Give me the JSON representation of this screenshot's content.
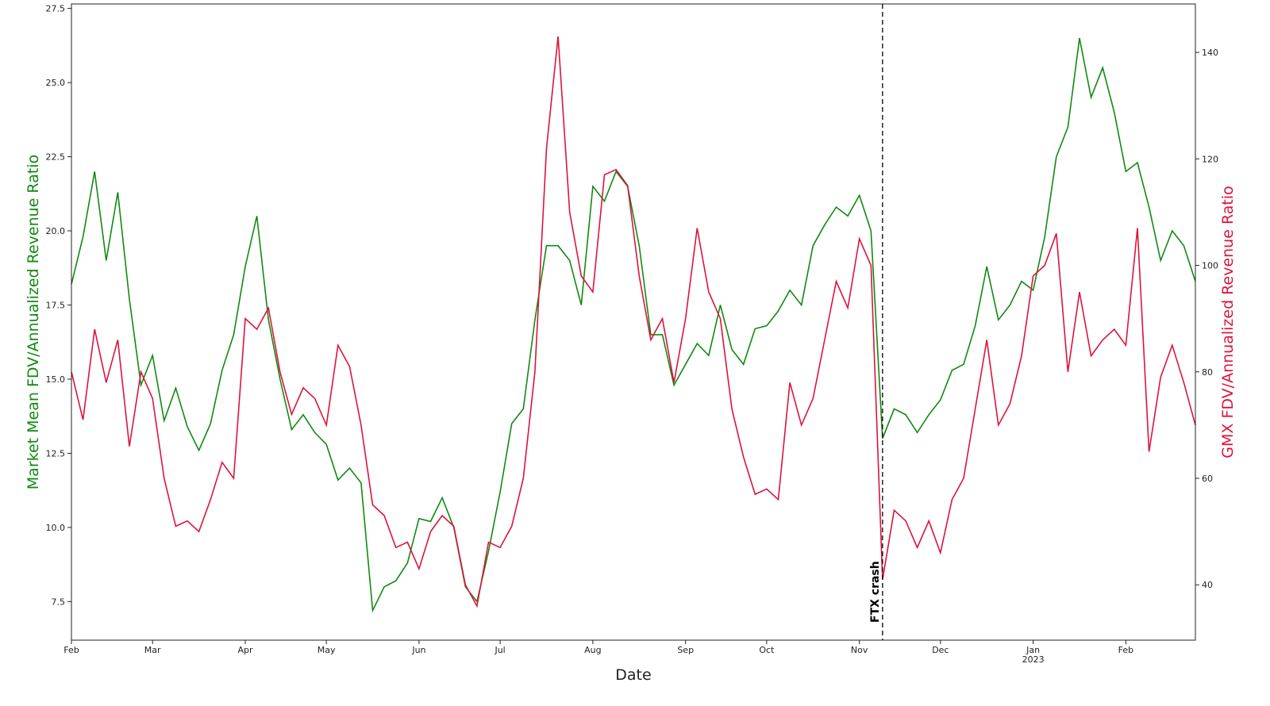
{
  "chart_data": {
    "type": "line",
    "xlabel": "Date",
    "ylabel": "Market Mean FDV/Annualized Revenue Ratio",
    "y2label": "GMX FDV/Annualized Revenue Ratio",
    "categories": [
      "Feb",
      null,
      null,
      null,
      null,
      null,
      null,
      "Mar",
      null,
      null,
      null,
      null,
      null,
      null,
      null,
      "Apr",
      null,
      null,
      null,
      null,
      null,
      null,
      "May",
      null,
      null,
      null,
      null,
      null,
      null,
      null,
      "Jun",
      null,
      null,
      null,
      null,
      null,
      null,
      "Jul",
      null,
      null,
      null,
      null,
      null,
      null,
      null,
      "Aug",
      null,
      null,
      null,
      null,
      null,
      null,
      null,
      "Sep",
      null,
      null,
      null,
      null,
      null,
      null,
      "Oct",
      null,
      null,
      null,
      null,
      null,
      null,
      null,
      "Nov",
      null,
      null,
      null,
      null,
      null,
      null,
      "Dec",
      null,
      null,
      null,
      null,
      null,
      null,
      null,
      "Jan",
      null,
      null,
      null,
      null,
      null,
      null,
      null,
      "Feb",
      null,
      null,
      null,
      null,
      null,
      null
    ],
    "year_label": {
      "text": "2023",
      "at": 83
    },
    "annotation": {
      "text": "FTX crash",
      "at": 70
    },
    "ylim": [
      6.2,
      27.65
    ],
    "yticks": [
      7.5,
      {
        "value": 10,
        "label": "10.0"
      },
      12.5,
      {
        "value": 15,
        "label": "15.0"
      },
      17.5,
      {
        "value": 20,
        "label": "20.0"
      },
      22.5,
      {
        "value": 25,
        "label": "25.0"
      },
      27.5
    ],
    "y2lim": [
      29.6,
      149.1
    ],
    "y2ticks": [
      40,
      60,
      80,
      100,
      120,
      140
    ],
    "series": [
      {
        "name": "Market Mean FDV/Annualized Revenue Ratio",
        "color": "#118a11",
        "values": [
          18.2,
          19.8,
          22.0,
          19.0,
          21.3,
          17.7,
          14.8,
          15.8,
          13.6,
          14.7,
          13.4,
          12.6,
          13.5,
          15.3,
          16.5,
          18.8,
          20.5,
          17.0,
          15.0,
          13.3,
          13.8,
          13.2,
          12.8,
          11.6,
          12.0,
          11.5,
          7.2,
          8.0,
          8.2,
          8.8,
          10.3,
          10.2,
          11.0,
          10.0,
          8.0,
          7.5,
          9.2,
          11.2,
          13.5,
          14.0,
          17.0,
          19.5,
          19.5,
          19.0,
          17.5,
          21.5,
          21.0,
          22.0,
          21.5,
          19.5,
          16.5,
          16.5,
          14.8,
          15.5,
          16.2,
          15.8,
          17.5,
          16.0,
          15.5,
          16.7,
          16.8,
          17.3,
          18.0,
          17.5,
          19.5,
          20.2,
          20.8,
          20.5,
          21.2,
          20.0,
          13.0,
          14.0,
          13.8,
          13.2,
          13.8,
          14.3,
          15.3,
          15.5,
          16.8,
          18.8,
          17.0,
          17.5,
          18.3,
          18.0,
          19.8,
          22.5,
          23.5,
          26.5,
          24.5,
          25.5,
          24.0,
          22.0,
          22.3,
          20.8,
          19.0,
          20.0,
          19.5,
          18.3
        ]
      },
      {
        "name": "GMX FDV/Annualized Revenue Ratio",
        "color": "#dc143c",
        "axis": "y2",
        "values": [
          80,
          71,
          88,
          78,
          86,
          66,
          80,
          75,
          60,
          51,
          52,
          50,
          56,
          63,
          60,
          90,
          88,
          92,
          80,
          72,
          77,
          75,
          70,
          85,
          81,
          70,
          55,
          53,
          47,
          48,
          43,
          50,
          53,
          51,
          40,
          36,
          48,
          47,
          51,
          60,
          80,
          122,
          143,
          110,
          98,
          95,
          117,
          118,
          115,
          98,
          86,
          90,
          78,
          90,
          107,
          95,
          90,
          73,
          64,
          57,
          58,
          56,
          78,
          70,
          75,
          86,
          97,
          92,
          105,
          100,
          41,
          54,
          52,
          47,
          52,
          46,
          56,
          60,
          73,
          86,
          70,
          74,
          83,
          98,
          100,
          106,
          80,
          95,
          83,
          86,
          88,
          85,
          107,
          65,
          79,
          85,
          78,
          70
        ]
      }
    ]
  }
}
